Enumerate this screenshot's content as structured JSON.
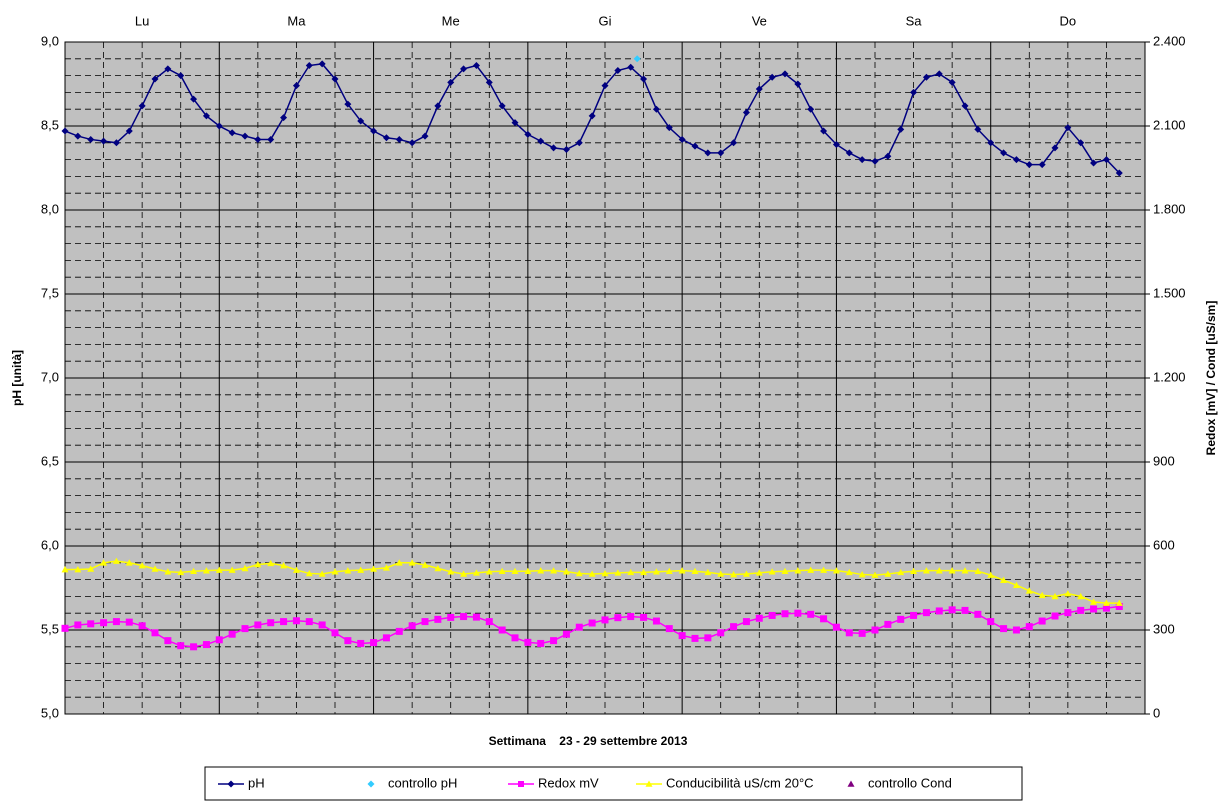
{
  "chart_data": {
    "type": "line",
    "xlabel": "Settimana    23 - 29 settembre 2013",
    "ylabel": "pH [unità]",
    "y2label": "Redox [mV] / Cond [uS/sm]",
    "categories": [
      "Lu",
      "Ma",
      "Me",
      "Gi",
      "Ve",
      "Sa",
      "Do"
    ],
    "xlim": [
      0,
      168
    ],
    "xticks": [
      0,
      24,
      48,
      72,
      96,
      120,
      144,
      168
    ],
    "ylim": [
      5,
      9
    ],
    "yticks": [
      {
        "value": 5,
        "label": "5,0"
      },
      {
        "value": 5.5,
        "label": "5,5"
      },
      {
        "value": 6,
        "label": "6,0"
      },
      {
        "value": 6.5,
        "label": "6,5"
      },
      {
        "value": 7,
        "label": "7,0"
      },
      {
        "value": 7.5,
        "label": "7,5"
      },
      {
        "value": 8,
        "label": "8,0"
      },
      {
        "value": 8.5,
        "label": "8,5"
      },
      {
        "value": 9,
        "label": "9,0"
      }
    ],
    "y2lim": [
      0,
      2400
    ],
    "y2ticks": [
      0,
      300,
      600,
      900,
      {
        "value": 1200,
        "label": "1.200"
      },
      {
        "value": 1500,
        "label": "1.500"
      },
      {
        "value": 1800,
        "label": "1.800"
      },
      {
        "value": 2100,
        "label": "2.100"
      },
      {
        "value": 2400,
        "label": "2.400"
      }
    ],
    "grid": true,
    "background": "#c0c0c0",
    "legend": "bottom",
    "x": [
      0,
      2,
      4,
      6,
      8,
      10,
      12,
      14,
      16,
      18,
      20,
      22,
      24,
      26,
      28,
      30,
      32,
      34,
      36,
      38,
      40,
      42,
      44,
      46,
      48,
      50,
      52,
      54,
      56,
      58,
      60,
      62,
      64,
      66,
      68,
      70,
      72,
      74,
      76,
      78,
      80,
      82,
      84,
      86,
      88,
      90,
      92,
      94,
      96,
      98,
      100,
      102,
      104,
      106,
      108,
      110,
      112,
      114,
      116,
      118,
      120,
      122,
      124,
      126,
      128,
      130,
      132,
      134,
      136,
      138,
      140,
      142,
      144,
      146,
      148,
      150,
      152,
      154,
      156,
      158,
      160,
      162,
      164
    ],
    "series": [
      {
        "name": "pH",
        "color": "#000080",
        "marker": "diamond",
        "line": true,
        "values": [
          8.47,
          8.44,
          8.42,
          8.41,
          8.4,
          8.47,
          8.62,
          8.78,
          8.84,
          8.8,
          8.66,
          8.56,
          8.5,
          8.46,
          8.44,
          8.42,
          8.42,
          8.55,
          8.74,
          8.86,
          8.87,
          8.78,
          8.63,
          8.53,
          8.47,
          8.43,
          8.42,
          8.4,
          8.44,
          8.62,
          8.76,
          8.84,
          8.86,
          8.76,
          8.62,
          8.52,
          8.45,
          8.41,
          8.37,
          8.36,
          8.4,
          8.56,
          8.74,
          8.83,
          8.85,
          8.78,
          8.6,
          8.49,
          8.42,
          8.38,
          8.34,
          8.34,
          8.4,
          8.58,
          8.72,
          8.79,
          8.81,
          8.75,
          8.6,
          8.47,
          8.39,
          8.34,
          8.3,
          8.29,
          8.32,
          8.48,
          8.7,
          8.79,
          8.81,
          8.76,
          8.62,
          8.48,
          8.4,
          8.34,
          8.3,
          8.27,
          8.27,
          8.37,
          8.49,
          8.4,
          8.28,
          8.3,
          8.22
        ]
      },
      {
        "name": "controllo pH",
        "color": "#33ccff",
        "marker": "diamond",
        "line": false,
        "x": [
          89
        ],
        "values": [
          8.9
        ]
      },
      {
        "name": "Redox mV",
        "color": "#ff00ff",
        "marker": "square",
        "line": true,
        "axis": "y2",
        "values": [
          306,
          318,
          322,
          326,
          330,
          328,
          315,
          290,
          262,
          244,
          240,
          248,
          265,
          285,
          305,
          318,
          326,
          330,
          333,
          330,
          318,
          290,
          262,
          252,
          255,
          272,
          295,
          315,
          330,
          338,
          345,
          348,
          346,
          330,
          300,
          272,
          256,
          252,
          262,
          285,
          310,
          325,
          336,
          344,
          348,
          345,
          332,
          305,
          280,
          270,
          272,
          290,
          312,
          330,
          342,
          352,
          358,
          360,
          356,
          340,
          310,
          290,
          288,
          300,
          320,
          338,
          352,
          362,
          368,
          372,
          370,
          356,
          330,
          305,
          300,
          312,
          332,
          350,
          362,
          370,
          375,
          378,
          384
        ]
      },
      {
        "name": "Conducibilità uS/cm 20°C",
        "color": "#ffff00",
        "marker": "triangle",
        "line": true,
        "axis": "y2",
        "values": [
          516,
          516,
          518,
          540,
          546,
          540,
          530,
          518,
          508,
          506,
          510,
          512,
          514,
          514,
          520,
          534,
          538,
          530,
          514,
          502,
          500,
          508,
          512,
          514,
          518,
          522,
          540,
          540,
          532,
          520,
          508,
          500,
          504,
          508,
          510,
          510,
          510,
          512,
          512,
          508,
          502,
          500,
          502,
          504,
          506,
          506,
          508,
          510,
          512,
          510,
          506,
          500,
          498,
          500,
          504,
          508,
          510,
          512,
          514,
          514,
          512,
          506,
          498,
          496,
          500,
          506,
          510,
          512,
          512,
          512,
          512,
          510,
          496,
          478,
          460,
          440,
          424,
          420,
          430,
          420,
          400,
          396,
          396
        ]
      },
      {
        "name": "controllo Cond",
        "color": "#800080",
        "marker": "triangle",
        "line": false,
        "axis": "y2",
        "x": [],
        "values": []
      }
    ]
  }
}
